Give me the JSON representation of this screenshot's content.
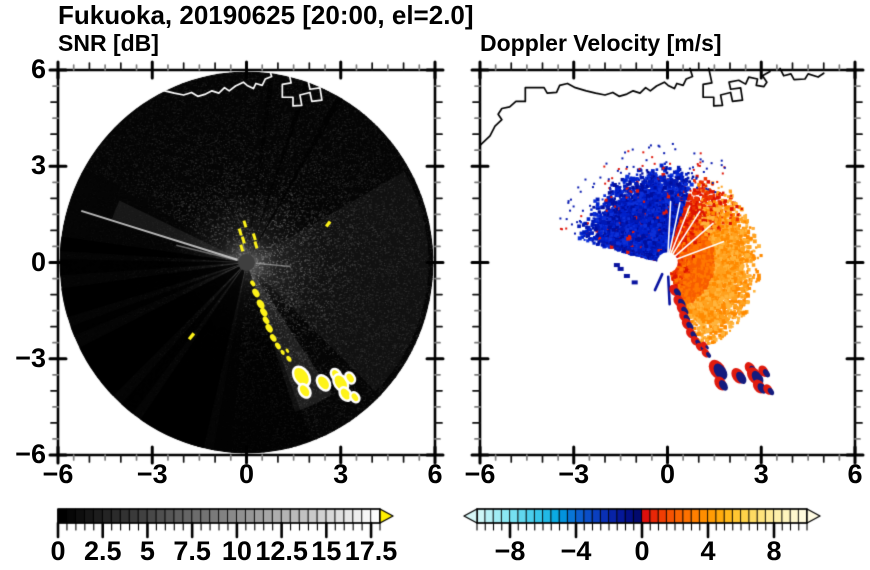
{
  "figure": {
    "title": "Fukuoka, 20190625 [20:00, el=2.0]",
    "background": "#ffffff",
    "frame_color": "#000000"
  },
  "panels": {
    "snr": {
      "subtitle": "SNR [dB]",
      "x_tick_labels": [
        "−6",
        "−3",
        "0",
        "3",
        "6"
      ],
      "y_tick_labels": [
        "6",
        "3",
        "0",
        "−3",
        "−6"
      ]
    },
    "velocity": {
      "subtitle": "Doppler Velocity [m/s]",
      "x_tick_labels": [
        "−6",
        "−3",
        "0",
        "3",
        "6"
      ]
    }
  },
  "axis": {
    "range": [
      -6,
      6
    ],
    "major_ticks": [
      -6,
      -3,
      0,
      3,
      6
    ],
    "mid_step": 1,
    "minor_step": 0.5,
    "minor_tick_color": "#7d7d7d"
  },
  "colorbars": {
    "snr": {
      "range": [
        0,
        18
      ],
      "cells": 36,
      "ramp_from": "#000000",
      "ramp_to": "#fcfcfc",
      "overflow_arrow_color": "#ffef00",
      "tick_values": [
        0,
        2.5,
        5,
        7.5,
        10,
        12.5,
        15,
        17.5
      ],
      "tick_labels": [
        "0",
        "2.5",
        "5",
        "7.5",
        "10",
        "12.5",
        "15",
        "17.5"
      ],
      "minor_step": 0.5
    },
    "velocity": {
      "range": [
        -10,
        10
      ],
      "cells": 40,
      "stops": [
        [
          -10,
          "#d8f8f8"
        ],
        [
          -8,
          "#7fe4f2"
        ],
        [
          -6,
          "#2cc0e8"
        ],
        [
          -5,
          "#00a2e0"
        ],
        [
          -4,
          "#0b66d2"
        ],
        [
          -3,
          "#0a46c4"
        ],
        [
          -2,
          "#0828ae"
        ],
        [
          -1,
          "#041292"
        ],
        [
          -0.25,
          "#020a6e"
        ],
        [
          0.25,
          "#dd0f0c"
        ],
        [
          1,
          "#ee3304"
        ],
        [
          2,
          "#f85c00"
        ],
        [
          3,
          "#ff7800"
        ],
        [
          4,
          "#ff9500"
        ],
        [
          5,
          "#ffb210"
        ],
        [
          6,
          "#ffcd3c"
        ],
        [
          7,
          "#ffdf6e"
        ],
        [
          8,
          "#ffeda0"
        ],
        [
          9,
          "#fff7c8"
        ],
        [
          10,
          "#fffbe2"
        ]
      ],
      "underflow_arrow_color": "#d8f8f8",
      "overflow_arrow_color": "#fffbe2",
      "tick_values": [
        -8,
        -4,
        0,
        4,
        8
      ],
      "tick_labels": [
        "−8",
        "−4",
        "0",
        "4",
        "8"
      ],
      "minor_step": 0.5
    }
  },
  "coastline": {
    "main": [
      [
        0.72,
        6.05
      ],
      [
        0.8,
        5.8
      ],
      [
        0.6,
        5.72
      ],
      [
        0.5,
        5.52
      ],
      [
        0.3,
        5.58
      ],
      [
        0.22,
        5.42
      ],
      [
        0.02,
        5.52
      ],
      [
        -0.1,
        5.62
      ],
      [
        -0.35,
        5.5
      ],
      [
        -0.55,
        5.35
      ],
      [
        -0.7,
        5.45
      ],
      [
        -0.88,
        5.28
      ],
      [
        -1.1,
        5.35
      ],
      [
        -1.3,
        5.25
      ],
      [
        -1.55,
        5.18
      ],
      [
        -1.75,
        5.3
      ],
      [
        -2.0,
        5.22
      ],
      [
        -2.3,
        5.28
      ],
      [
        -2.6,
        5.35
      ],
      [
        -2.95,
        5.45
      ],
      [
        -3.2,
        5.58
      ],
      [
        -3.45,
        5.52
      ],
      [
        -3.55,
        5.3
      ],
      [
        -3.85,
        5.28
      ],
      [
        -3.95,
        5.45
      ],
      [
        -4.55,
        5.45
      ],
      [
        -4.55,
        5.02
      ],
      [
        -4.85,
        5.02
      ],
      [
        -5.05,
        4.85
      ],
      [
        -5.3,
        4.8
      ],
      [
        -5.42,
        4.62
      ],
      [
        -5.3,
        4.45
      ],
      [
        -5.52,
        4.25
      ],
      [
        -5.68,
        3.95
      ],
      [
        -6.0,
        3.65
      ]
    ],
    "port": [
      [
        1.32,
        6.05
      ],
      [
        1.42,
        5.6
      ],
      [
        1.14,
        5.55
      ],
      [
        1.14,
        5.15
      ],
      [
        1.48,
        5.15
      ],
      [
        1.48,
        4.88
      ],
      [
        1.76,
        4.9
      ],
      [
        1.7,
        5.22
      ],
      [
        2.02,
        5.3
      ],
      [
        2.08,
        5.02
      ],
      [
        2.4,
        5.06
      ],
      [
        2.34,
        5.44
      ],
      [
        2.02,
        5.4
      ],
      [
        1.97,
        5.62
      ],
      [
        2.28,
        5.68
      ],
      [
        2.5,
        5.56
      ],
      [
        2.6,
        5.78
      ],
      [
        2.88,
        5.72
      ],
      [
        2.84,
        5.52
      ],
      [
        3.08,
        5.48
      ],
      [
        3.18,
        5.62
      ],
      [
        3.04,
        5.82
      ],
      [
        3.28,
        5.95
      ]
    ],
    "port2": [
      [
        3.6,
        6.05
      ],
      [
        3.72,
        5.82
      ],
      [
        3.95,
        5.88
      ],
      [
        4.05,
        5.7
      ],
      [
        4.4,
        5.72
      ],
      [
        4.5,
        5.88
      ],
      [
        4.82,
        5.78
      ],
      [
        5.0,
        5.9
      ]
    ]
  },
  "chart_data": [
    {
      "type": "heatmap",
      "name": "snr_ppi",
      "title": "SNR [dB]",
      "geometry": "radar PPI scan, range rings in km, scan radius 5.95 km, center at (0,0)",
      "xlim": [
        -6,
        6
      ],
      "ylim": [
        -6,
        6
      ],
      "disk_radius": 5.95,
      "background_value": "near 0 dB noise, brighter (up to ~10 dB) near center, dimmer on west side",
      "center_dot_radius": 0.27,
      "dark_sectors": [
        [
          160,
          190,
          0.5
        ],
        [
          193,
          214,
          0.85
        ],
        [
          217,
          221.5,
          0.8
        ],
        [
          225,
          243,
          0.9
        ],
        [
          247,
          250,
          0.7
        ],
        [
          253,
          262,
          0.85
        ],
        [
          266,
          271,
          0.8
        ],
        [
          273.5,
          278,
          0.85
        ],
        [
          18,
          19.5,
          0.6
        ],
        [
          28.5,
          30.5,
          0.6
        ],
        [
          7,
          8.5,
          0.5
        ]
      ],
      "bright_rays": [
        [
          287,
          0.3,
          5.5,
          2,
          0.85
        ],
        [
          283.5,
          0.3,
          2.3,
          1.5,
          0.45
        ],
        [
          95,
          0.3,
          1.4,
          1.5,
          0.5
        ],
        [
          350,
          0.35,
          1.1,
          1.2,
          0.4
        ]
      ],
      "bright_lanes": [
        [
          147,
          162,
          5.0,
          0.1
        ],
        [
          288,
          296,
          4.5,
          0.08
        ],
        [
          60,
          135,
          5.8,
          0.05
        ]
      ],
      "echo_trail": [
        [
          0.2,
          -0.65,
          0.07
        ],
        [
          0.3,
          -0.95,
          0.1
        ],
        [
          0.45,
          -1.3,
          0.11
        ],
        [
          0.55,
          -1.55,
          0.1
        ],
        [
          0.62,
          -1.8,
          0.09
        ],
        [
          0.72,
          -2.05,
          0.1
        ],
        [
          0.85,
          -2.35,
          0.09
        ],
        [
          1.0,
          -2.6,
          0.08
        ],
        [
          1.15,
          -2.8,
          0.06
        ],
        [
          1.3,
          -2.75,
          0.05
        ],
        [
          1.35,
          -3.0,
          0.07
        ],
        [
          1.75,
          -3.55,
          0.2
        ],
        [
          1.85,
          -4.0,
          0.13
        ],
        [
          2.45,
          -3.75,
          0.15
        ],
        [
          2.85,
          -3.5,
          0.11
        ],
        [
          3.0,
          -3.75,
          0.17
        ],
        [
          3.3,
          -3.6,
          0.1
        ],
        [
          3.15,
          -4.1,
          0.13
        ],
        [
          3.45,
          -4.2,
          0.09
        ]
      ],
      "isolated_echoes": [
        [
          -1.75,
          -2.3,
          0.12
        ],
        [
          2.6,
          1.2,
          0.1
        ]
      ],
      "center_dashes": [
        [
          -0.15,
          0.45
        ],
        [
          -0.1,
          0.7
        ],
        [
          -0.2,
          0.95
        ],
        [
          -0.05,
          1.2
        ],
        [
          0.3,
          0.55
        ],
        [
          0.25,
          0.8
        ]
      ],
      "echo_color": "#fef319",
      "coast_color": "#ffffff"
    },
    {
      "type": "heatmap",
      "name": "doppler_velocity_ppi",
      "title": "Doppler Velocity [m/s]",
      "geometry": "radar PPI scan, same grid as SNR panel",
      "xlim": [
        -6,
        6
      ],
      "ylim": [
        -6,
        6
      ],
      "toward_fan": {
        "azimuth": [
          283,
          378
        ],
        "r_in": 0.33,
        "r_core": 1.9,
        "r_max": 3.1,
        "velocity": "-4 to -9 m/s",
        "colors": [
          "#000f9e",
          "#0019b6",
          "#0022cc",
          "#0c30d8"
        ]
      },
      "away_fan": {
        "azimuth": [
          18,
          160
        ],
        "r_in": 0.33,
        "r_core": 1.75,
        "r_max": 3.05,
        "velocity": "+1 to +6 m/s",
        "red_color": [
          "#dd1400",
          "#ee3300"
        ],
        "orange_colors": [
          "#f85d00",
          "#ff7800",
          "#ff8a00",
          "#ffa11e",
          "#ffb43c"
        ]
      },
      "white_gap_rays": [
        3,
        12,
        22,
        33,
        50,
        70,
        198
      ],
      "thin_ray": [
        287.5,
        0.5,
        2.05
      ],
      "south_streaks": [
        [
          177,
          0.45,
          1.3
        ],
        [
          205,
          0.4,
          0.95
        ]
      ],
      "left_patches": [
        [
          -1.5,
          -0.2
        ],
        [
          -1.3,
          -0.42
        ],
        [
          -1.05,
          -0.62
        ],
        [
          -1.62,
          -0.08
        ]
      ],
      "scatter_dots": {
        "azimuth": [
          285,
          395
        ],
        "r": [
          2.4,
          3.7
        ],
        "count": 120
      },
      "echo_trail_colors": {
        "core": "#141b7e",
        "fringe": "#e01b0e"
      },
      "center_hole_radius": 0.33,
      "coast_color": "#000000"
    }
  ]
}
